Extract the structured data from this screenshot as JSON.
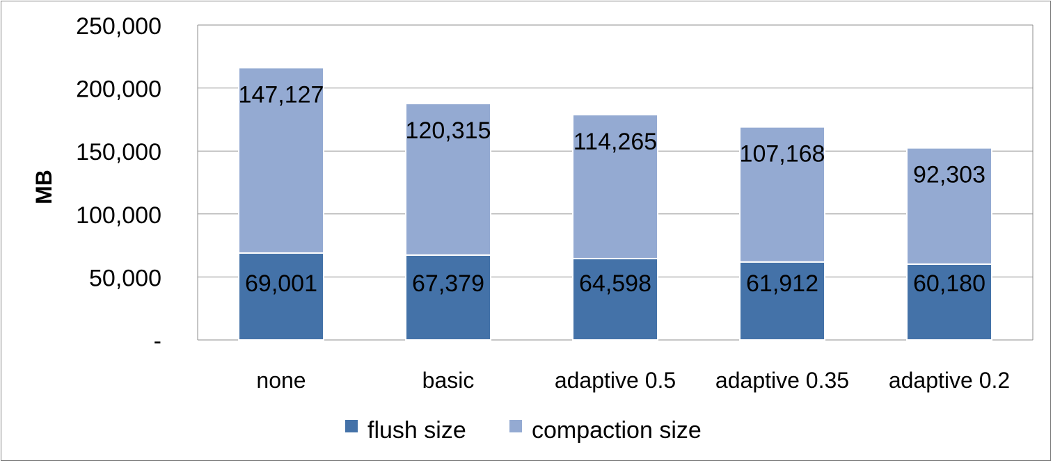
{
  "chart_data": {
    "type": "bar",
    "stacked": true,
    "categories": [
      "none",
      "basic",
      "adaptive 0.5",
      "adaptive 0.35",
      "adaptive 0.2"
    ],
    "series": [
      {
        "name": "flush size",
        "values": [
          69001,
          67379,
          64598,
          61912,
          60180
        ],
        "labels": [
          "69,001",
          "67,379",
          "64,598",
          "61,912",
          "60,180"
        ],
        "color": "#4472a8"
      },
      {
        "name": "compaction size",
        "values": [
          147127,
          120315,
          114265,
          107168,
          92303
        ],
        "labels": [
          "147,127",
          "120,315",
          "114,265",
          "107,168",
          "92,303"
        ],
        "color": "#94aad2"
      }
    ],
    "title": "",
    "xlabel": "",
    "ylabel": "MB",
    "ylim": [
      0,
      250000
    ],
    "yticks": [
      0,
      50000,
      100000,
      150000,
      200000,
      250000
    ],
    "ytick_labels": [
      "-",
      "50,000",
      "100,000",
      "150,000",
      "200,000",
      "250,000"
    ],
    "grid": true,
    "legend_position": "bottom"
  }
}
